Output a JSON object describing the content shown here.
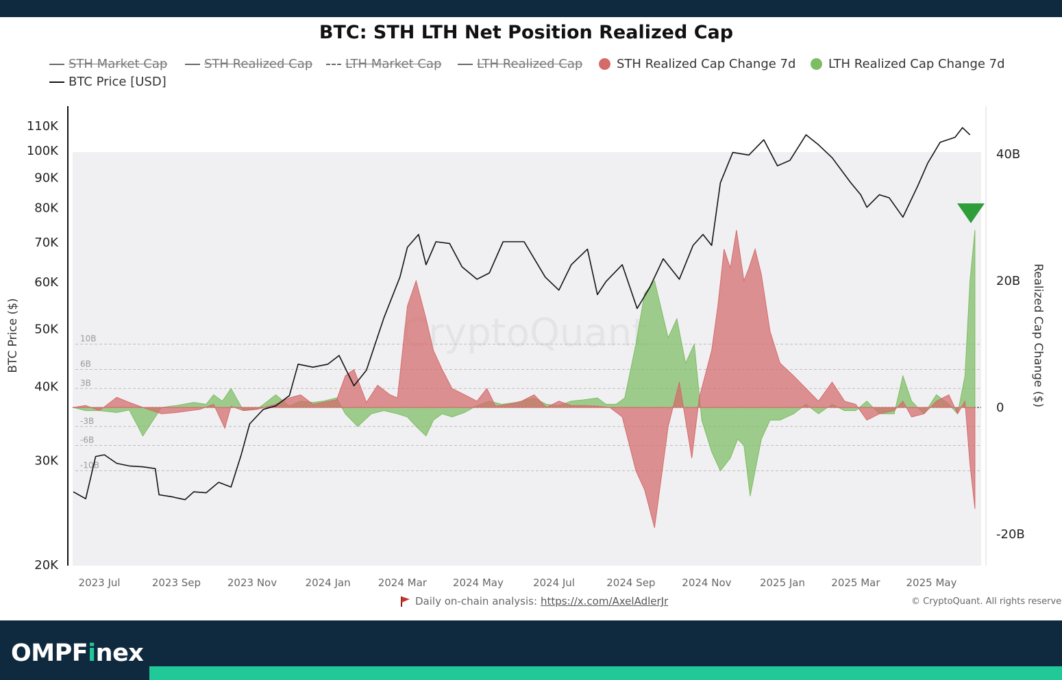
{
  "brand": {
    "part1": "OMPF",
    "part2": "i",
    "part3": "nex"
  },
  "colors": {
    "sth": "#d46a6a",
    "lth": "#7dbd62",
    "price": "#111111",
    "plot_bg": "#f0f0f3",
    "bars": "#0f2a3f",
    "accent": "#20c997"
  },
  "footer": {
    "note_label": "Daily on-chain analysis:",
    "note_link": "https://x.com/AxelAdlerJr",
    "copyright": "© CryptoQuant. All rights reserved"
  },
  "chart_data": {
    "type": "area",
    "title": "BTC: STH LTH Net Position Realized Cap",
    "watermark": "CryptoQuant",
    "legend": [
      {
        "label": "STH Market Cap",
        "style": "line-struck"
      },
      {
        "label": "STH Realized Cap",
        "style": "line-struck"
      },
      {
        "label": "LTH Market Cap",
        "style": "dashed-struck"
      },
      {
        "label": "LTH Realized Cap",
        "style": "line-struck"
      },
      {
        "label": "STH Realized Cap Change 7d",
        "style": "dot",
        "color": "#d46a6a"
      },
      {
        "label": "LTH Realized Cap Change 7d",
        "style": "dot",
        "color": "#7dbd62"
      },
      {
        "label": "BTC Price [USD]",
        "style": "line"
      }
    ],
    "left_axis": {
      "label": "BTC Price ($)",
      "scale": "log",
      "range": [
        20000,
        115000
      ],
      "ticks": [
        {
          "v": 20000,
          "t": "20K"
        },
        {
          "v": 30000,
          "t": "30K"
        },
        {
          "v": 40000,
          "t": "40K"
        },
        {
          "v": 50000,
          "t": "50K"
        },
        {
          "v": 60000,
          "t": "60K"
        },
        {
          "v": 70000,
          "t": "70K"
        },
        {
          "v": 80000,
          "t": "80K"
        },
        {
          "v": 90000,
          "t": "90K"
        },
        {
          "v": 100000,
          "t": "100K"
        },
        {
          "v": 110000,
          "t": "110K"
        }
      ]
    },
    "right_axis": {
      "label": "Realized Cap Change ($)",
      "range": [
        -25,
        44
      ],
      "ticks": [
        {
          "v": 40,
          "t": "40B"
        },
        {
          "v": 20,
          "t": "20B"
        },
        {
          "v": 0,
          "t": "0"
        },
        {
          "v": -20,
          "t": "-20B"
        }
      ]
    },
    "ref_lines": [
      {
        "v": 10,
        "t": "10B"
      },
      {
        "v": 6,
        "t": "6B"
      },
      {
        "v": 3,
        "t": "3B"
      },
      {
        "v": -3,
        "t": "-3B"
      },
      {
        "v": -6,
        "t": "-6B"
      },
      {
        "v": -10,
        "t": "-10B"
      }
    ],
    "x_axis": {
      "range": [
        "2023-06-10",
        "2025-06-10"
      ],
      "ticks": [
        {
          "d": "2023-07-01",
          "t": "2023 Jul"
        },
        {
          "d": "2023-09-01",
          "t": "2023 Sep"
        },
        {
          "d": "2023-11-01",
          "t": "2023 Nov"
        },
        {
          "d": "2024-01-01",
          "t": "2024 Jan"
        },
        {
          "d": "2024-03-01",
          "t": "2024 Mar"
        },
        {
          "d": "2024-05-01",
          "t": "2024 May"
        },
        {
          "d": "2024-07-01",
          "t": "2024 Jul"
        },
        {
          "d": "2024-09-01",
          "t": "2024 Sep"
        },
        {
          "d": "2024-11-01",
          "t": "2024 Nov"
        },
        {
          "d": "2025-01-01",
          "t": "2025 Jan"
        },
        {
          "d": "2025-03-01",
          "t": "2025 Mar"
        },
        {
          "d": "2025-05-01",
          "t": "2025 May"
        }
      ]
    },
    "series": [
      {
        "name": "BTC Price [USD]",
        "x": [
          "2023-06-10",
          "2023-06-20",
          "2023-06-28",
          "2023-07-05",
          "2023-07-15",
          "2023-07-25",
          "2023-08-05",
          "2023-08-15",
          "2023-08-18",
          "2023-08-28",
          "2023-09-08",
          "2023-09-15",
          "2023-09-25",
          "2023-10-05",
          "2023-10-15",
          "2023-10-23",
          "2023-10-30",
          "2023-11-10",
          "2023-11-20",
          "2023-12-01",
          "2023-12-08",
          "2023-12-20",
          "2024-01-01",
          "2024-01-10",
          "2024-01-22",
          "2024-02-01",
          "2024-02-15",
          "2024-02-28",
          "2024-03-05",
          "2024-03-14",
          "2024-03-20",
          "2024-03-28",
          "2024-04-08",
          "2024-04-18",
          "2024-04-30",
          "2024-05-10",
          "2024-05-21",
          "2024-06-07",
          "2024-06-24",
          "2024-07-05",
          "2024-07-15",
          "2024-07-28",
          "2024-08-05",
          "2024-08-12",
          "2024-08-25",
          "2024-09-06",
          "2024-09-16",
          "2024-09-27",
          "2024-10-10",
          "2024-10-21",
          "2024-10-29",
          "2024-11-05",
          "2024-11-12",
          "2024-11-22",
          "2024-12-05",
          "2024-12-17",
          "2024-12-28",
          "2025-01-07",
          "2025-01-20",
          "2025-01-30",
          "2025-02-10",
          "2025-02-25",
          "2025-03-05",
          "2025-03-10",
          "2025-03-20",
          "2025-03-28",
          "2025-04-08",
          "2025-04-20",
          "2025-04-28",
          "2025-05-08",
          "2025-05-20",
          "2025-05-26",
          "2025-06-01"
        ],
        "values": [
          26500,
          25800,
          30400,
          30600,
          29600,
          29300,
          29200,
          29000,
          26200,
          26000,
          25700,
          26500,
          26400,
          27500,
          27000,
          30500,
          34500,
          36500,
          37000,
          38500,
          43500,
          43000,
          43500,
          45000,
          40000,
          42500,
          52000,
          61000,
          68500,
          72000,
          64000,
          70000,
          69500,
          63500,
          60500,
          62000,
          70000,
          70000,
          61000,
          58000,
          64000,
          68000,
          57000,
          60000,
          64000,
          54000,
          58500,
          65500,
          60500,
          69000,
          72000,
          69000,
          88000,
          99000,
          98000,
          104000,
          94000,
          96000,
          106000,
          102000,
          97000,
          88000,
          84000,
          80000,
          84000,
          83000,
          77000,
          87000,
          95000,
          103000,
          105000,
          109000,
          106000
        ]
      },
      {
        "name": "STH Realized Cap Change 7d",
        "x": [
          "2023-06-10",
          "2023-06-20",
          "2023-07-01",
          "2023-07-15",
          "2023-07-25",
          "2023-08-05",
          "2023-08-20",
          "2023-09-01",
          "2023-09-20",
          "2023-10-01",
          "2023-10-10",
          "2023-10-15",
          "2023-10-25",
          "2023-11-05",
          "2023-11-20",
          "2023-12-01",
          "2023-12-10",
          "2023-12-20",
          "2023-12-28",
          "2024-01-08",
          "2024-01-15",
          "2024-01-22",
          "2024-02-01",
          "2024-02-10",
          "2024-02-20",
          "2024-02-26",
          "2024-03-05",
          "2024-03-12",
          "2024-03-20",
          "2024-03-26",
          "2024-04-02",
          "2024-04-10",
          "2024-04-20",
          "2024-04-30",
          "2024-05-08",
          "2024-05-15",
          "2024-05-25",
          "2024-06-05",
          "2024-06-15",
          "2024-06-25",
          "2024-07-05",
          "2024-07-15",
          "2024-07-25",
          "2024-08-05",
          "2024-08-15",
          "2024-08-25",
          "2024-09-05",
          "2024-09-12",
          "2024-09-20",
          "2024-10-01",
          "2024-10-10",
          "2024-10-20",
          "2024-10-26",
          "2024-11-05",
          "2024-11-10",
          "2024-11-15",
          "2024-11-20",
          "2024-11-25",
          "2024-12-01",
          "2024-12-05",
          "2024-12-10",
          "2024-12-15",
          "2024-12-22",
          "2024-12-30",
          "2025-01-10",
          "2025-01-20",
          "2025-01-30",
          "2025-02-10",
          "2025-02-20",
          "2025-03-01",
          "2025-03-10",
          "2025-03-20",
          "2025-04-01",
          "2025-04-08",
          "2025-04-15",
          "2025-04-25",
          "2025-05-05",
          "2025-05-15",
          "2025-05-22",
          "2025-05-28",
          "2025-06-01",
          "2025-06-05"
        ],
        "values": [
          0,
          0.3,
          -0.5,
          1.6,
          0.8,
          0,
          -1,
          -0.8,
          -0.3,
          0.5,
          -3.3,
          0.2,
          -0.5,
          -0.3,
          0.5,
          1.5,
          2,
          0.5,
          0.8,
          1.2,
          5,
          6,
          0.8,
          3.5,
          2,
          1.5,
          16,
          20,
          14,
          9,
          6,
          3,
          2,
          1,
          3,
          0.2,
          0.5,
          1,
          2,
          0,
          1,
          0.3,
          0.3,
          0.2,
          0,
          -1.5,
          -10,
          -13,
          -19,
          -3,
          4,
          -8,
          1.5,
          9,
          16,
          25,
          22,
          28,
          20,
          22,
          25,
          21,
          12,
          7,
          5,
          3,
          1,
          4,
          1,
          0.5,
          -2,
          -1,
          -0.5,
          1,
          -1.5,
          -1,
          1,
          2,
          -1,
          1,
          -9,
          -16
        ]
      },
      {
        "name": "LTH Realized Cap Change 7d",
        "x": [
          "2023-06-10",
          "2023-06-20",
          "2023-07-01",
          "2023-07-15",
          "2023-07-25",
          "2023-08-05",
          "2023-08-20",
          "2023-09-01",
          "2023-09-15",
          "2023-09-25",
          "2023-10-01",
          "2023-10-08",
          "2023-10-15",
          "2023-10-25",
          "2023-11-05",
          "2023-11-20",
          "2023-12-01",
          "2023-12-10",
          "2023-12-20",
          "2023-12-28",
          "2024-01-08",
          "2024-01-15",
          "2024-01-25",
          "2024-02-05",
          "2024-02-15",
          "2024-02-26",
          "2024-03-05",
          "2024-03-12",
          "2024-03-20",
          "2024-03-26",
          "2024-04-02",
          "2024-04-10",
          "2024-04-20",
          "2024-04-30",
          "2024-05-10",
          "2024-05-20",
          "2024-06-01",
          "2024-06-15",
          "2024-06-25",
          "2024-07-05",
          "2024-07-15",
          "2024-07-25",
          "2024-08-05",
          "2024-08-12",
          "2024-08-20",
          "2024-08-27",
          "2024-09-05",
          "2024-09-12",
          "2024-09-20",
          "2024-10-01",
          "2024-10-08",
          "2024-10-15",
          "2024-10-22",
          "2024-10-28",
          "2024-11-05",
          "2024-11-12",
          "2024-11-20",
          "2024-11-26",
          "2024-12-01",
          "2024-12-06",
          "2024-12-10",
          "2024-12-15",
          "2024-12-22",
          "2024-12-30",
          "2025-01-10",
          "2025-01-20",
          "2025-01-30",
          "2025-02-10",
          "2025-02-20",
          "2025-03-01",
          "2025-03-10",
          "2025-03-20",
          "2025-04-01",
          "2025-04-08",
          "2025-04-15",
          "2025-04-25",
          "2025-05-05",
          "2025-05-15",
          "2025-05-22",
          "2025-05-28",
          "2025-06-01",
          "2025-06-05"
        ],
        "values": [
          0,
          -0.5,
          -0.5,
          -0.8,
          -0.4,
          -4.5,
          0,
          0.3,
          0.8,
          0.5,
          2,
          1,
          3,
          -0.5,
          -0.3,
          2,
          0.2,
          1,
          0.8,
          1,
          1.5,
          -1,
          -3,
          -1,
          -0.5,
          -1,
          -1.5,
          -3,
          -4.5,
          -2,
          -1,
          -1.5,
          -0.8,
          0.3,
          1,
          0.5,
          0.8,
          1.5,
          0.5,
          0.3,
          1,
          1.2,
          1.5,
          0.5,
          0.5,
          1.5,
          10,
          18,
          20,
          11,
          14,
          7,
          10,
          -2,
          -7,
          -10,
          -8,
          -5,
          -6,
          -14,
          -10,
          -5,
          -2,
          -2,
          -1,
          0.5,
          -1,
          0.5,
          -0.5,
          -0.5,
          1,
          -1,
          -1,
          5,
          1,
          -1,
          2,
          0.5,
          -1,
          5,
          20,
          28
        ]
      }
    ]
  }
}
